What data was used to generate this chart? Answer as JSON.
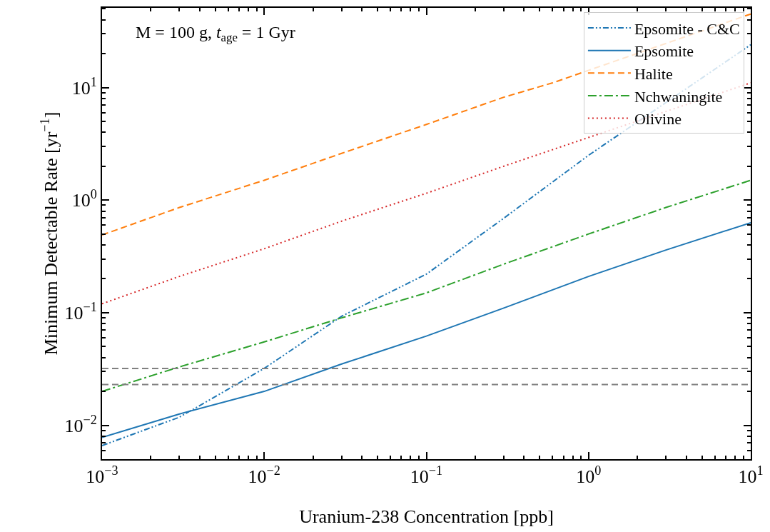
{
  "chart_data": {
    "type": "line",
    "xlabel": "Uranium-238 Concentration [ppb]",
    "ylabel": "Minimum Detectable Rate [yr$^{−1}$]",
    "annotations": [
      "M = 100 g, t$_{age}$ = 1 Gyr"
    ],
    "log": "xy",
    "xlim": [
      0.001,
      10
    ],
    "ylim": [
      0.005,
      51
    ],
    "xticks": [
      {
        "value": 0.001,
        "label": "10$^{−3}$"
      },
      {
        "value": 0.01,
        "label": "10$^{−2}$"
      },
      {
        "value": 0.1,
        "label": "10$^{−1}$"
      },
      {
        "value": 1,
        "label": "10$^{0}$"
      },
      {
        "value": 10,
        "label": "10$^{1}$"
      }
    ],
    "yticks": [
      {
        "value": 0.01,
        "label": "10$^{−2}$"
      },
      {
        "value": 0.1,
        "label": "10$^{−1}$"
      },
      {
        "value": 1,
        "label": "10$^{0}$"
      },
      {
        "value": 10,
        "label": "10$^{1}$"
      }
    ],
    "x": [
      0.001,
      0.003,
      0.01,
      0.03,
      0.1,
      0.3,
      1,
      3,
      10
    ],
    "series": [
      {
        "name": "Epsomite - C&C",
        "color": "#1f77b4",
        "line_style": "dashdotdot",
        "x": [
          0.001,
          0.003,
          0.01,
          0.03,
          0.1,
          0.3,
          1,
          10
        ],
        "values": [
          0.0066,
          0.0118,
          0.032,
          0.093,
          0.22,
          0.69,
          2.5,
          24
        ]
      },
      {
        "name": "Epsomite",
        "color": "#1f77b4",
        "line_style": "solid",
        "values": [
          0.0078,
          0.0126,
          0.02,
          0.035,
          0.062,
          0.11,
          0.21,
          0.36,
          0.63
        ]
      },
      {
        "name": "Halite",
        "color": "#ff7f0e",
        "line_style": "dashed",
        "x": [
          0.001,
          0.003,
          0.01,
          0.03,
          0.1,
          0.3,
          0.6,
          10
        ],
        "values": [
          0.49,
          0.86,
          1.5,
          2.6,
          4.7,
          8.2,
          11,
          45
        ]
      },
      {
        "name": "Nchwaningite",
        "color": "#2ca02c",
        "line_style": "dashdot",
        "values": [
          0.02,
          0.033,
          0.055,
          0.09,
          0.15,
          0.27,
          0.5,
          0.86,
          1.5
        ]
      },
      {
        "name": "Olivine",
        "color": "#d62728",
        "line_style": "dotted",
        "x": [
          0.001,
          0.003,
          0.01,
          0.03,
          0.1,
          0.3,
          1,
          10
        ],
        "values": [
          0.12,
          0.21,
          0.37,
          0.65,
          1.15,
          2.0,
          3.6,
          11
        ]
      }
    ],
    "ref_lines": [
      {
        "axis": "y",
        "value": 0.032,
        "color": "#808080",
        "line_style": "dashed"
      },
      {
        "axis": "y",
        "value": 0.023,
        "color": "#808080",
        "line_style": "dashed"
      }
    ],
    "legend": "top right",
    "grid": false,
    "marker": "none"
  }
}
